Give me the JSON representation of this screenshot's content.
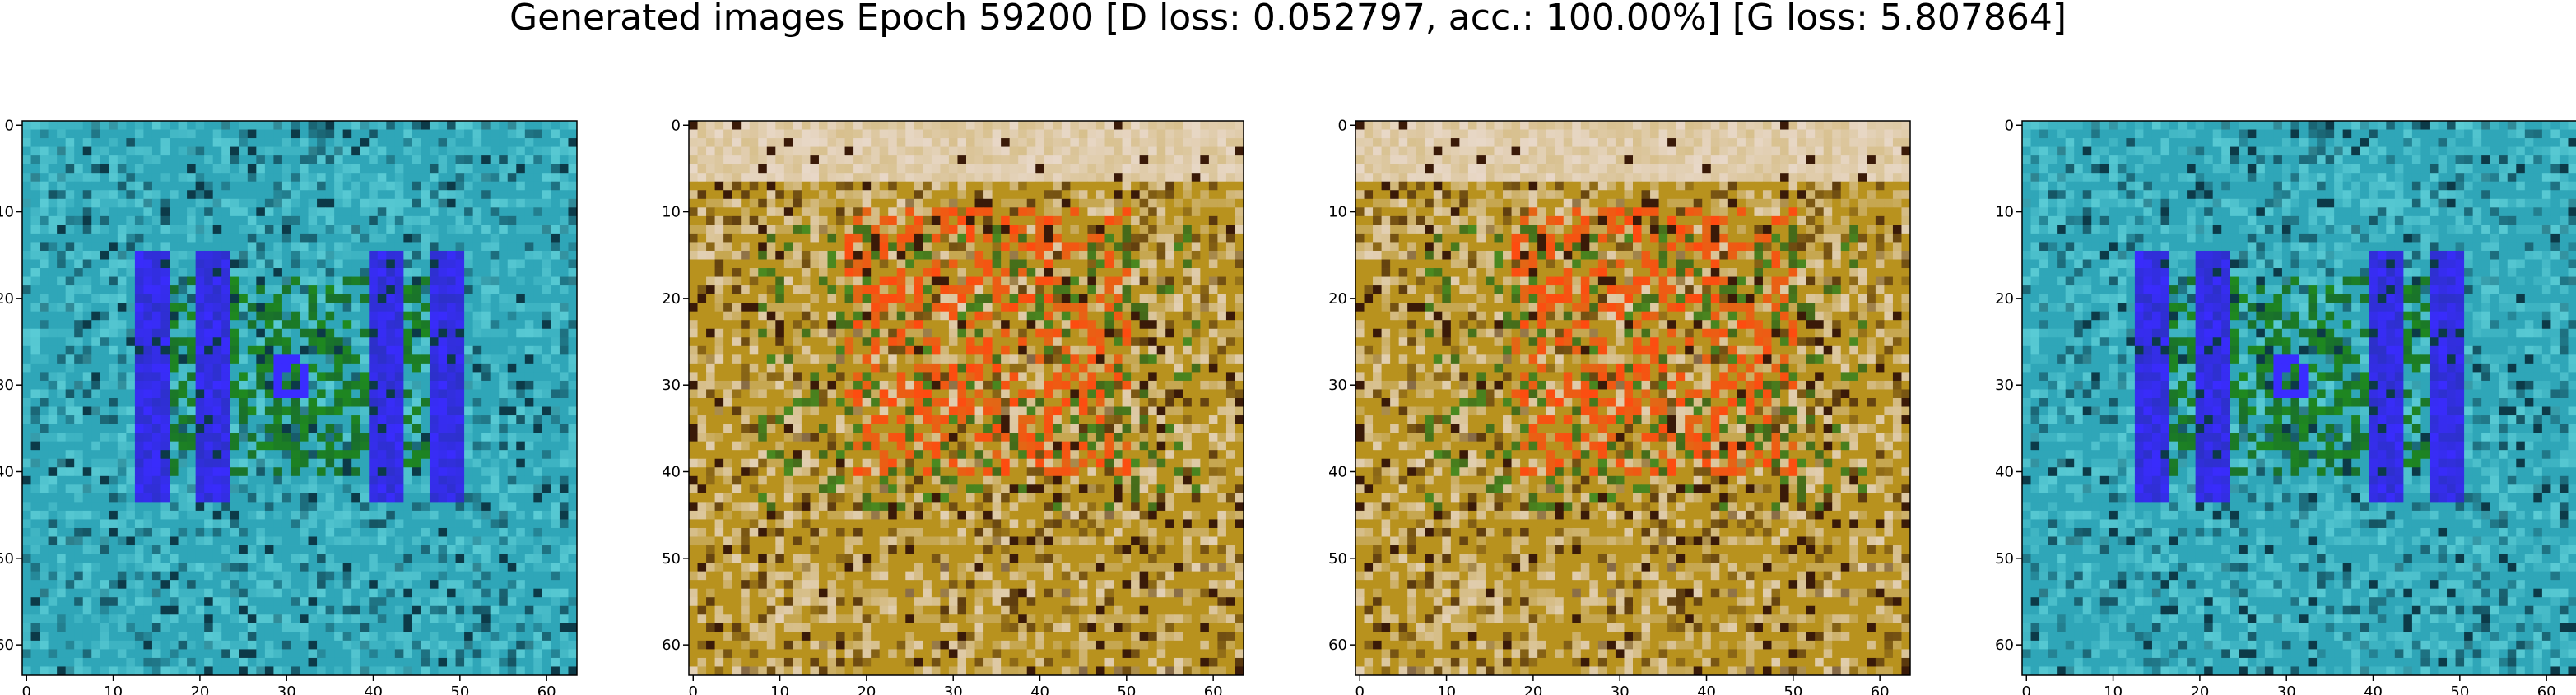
{
  "title": "Generated images Epoch 59200 [D loss: 0.052797, acc.: 100.00%] [G loss: 5.807864]",
  "chart_data": [
    {
      "type": "heatmap",
      "xlim": [
        0,
        63
      ],
      "ylim": [
        63,
        0
      ],
      "x_ticks": [
        "0",
        "10",
        "20",
        "30",
        "40",
        "50",
        "60"
      ],
      "y_ticks": [
        "0",
        "10",
        "20",
        "30",
        "40",
        "50",
        "60"
      ],
      "palette": {
        "base": "#2fa6b8",
        "light": "#5fd0d8",
        "dark": "#0c3a48",
        "accent_1": "#3a2cff",
        "accent_2": "#1f8a1f"
      }
    },
    {
      "type": "heatmap",
      "xlim": [
        0,
        63
      ],
      "ylim": [
        63,
        0
      ],
      "x_ticks": [
        "0",
        "10",
        "20",
        "30",
        "40",
        "50",
        "60"
      ],
      "y_ticks": [
        "0",
        "10",
        "20",
        "30",
        "40",
        "50",
        "60"
      ],
      "palette": {
        "base": "#b8921e",
        "light": "#e8d8c8",
        "dark": "#3a1a08",
        "accent_1": "#ff4a10",
        "accent_2": "#4a8a20"
      }
    },
    {
      "type": "heatmap",
      "xlim": [
        0,
        63
      ],
      "ylim": [
        63,
        0
      ],
      "x_ticks": [
        "0",
        "10",
        "20",
        "30",
        "40",
        "50",
        "60"
      ],
      "y_ticks": [
        "0",
        "10",
        "20",
        "30",
        "40",
        "50",
        "60"
      ],
      "palette": {
        "base": "#b8921e",
        "light": "#e8d8c8",
        "dark": "#3a1a08",
        "accent_1": "#ff4a10",
        "accent_2": "#4a8a20"
      }
    },
    {
      "type": "heatmap",
      "xlim": [
        0,
        63
      ],
      "ylim": [
        63,
        0
      ],
      "x_ticks": [
        "0",
        "10",
        "20",
        "30",
        "40",
        "50",
        "60"
      ],
      "y_ticks": [
        "0",
        "10",
        "20",
        "30",
        "40",
        "50",
        "60"
      ],
      "palette": {
        "base": "#2fa6b8",
        "light": "#5fd0d8",
        "dark": "#0c3a48",
        "accent_1": "#3a2cff",
        "accent_2": "#1f8a1f"
      }
    }
  ]
}
